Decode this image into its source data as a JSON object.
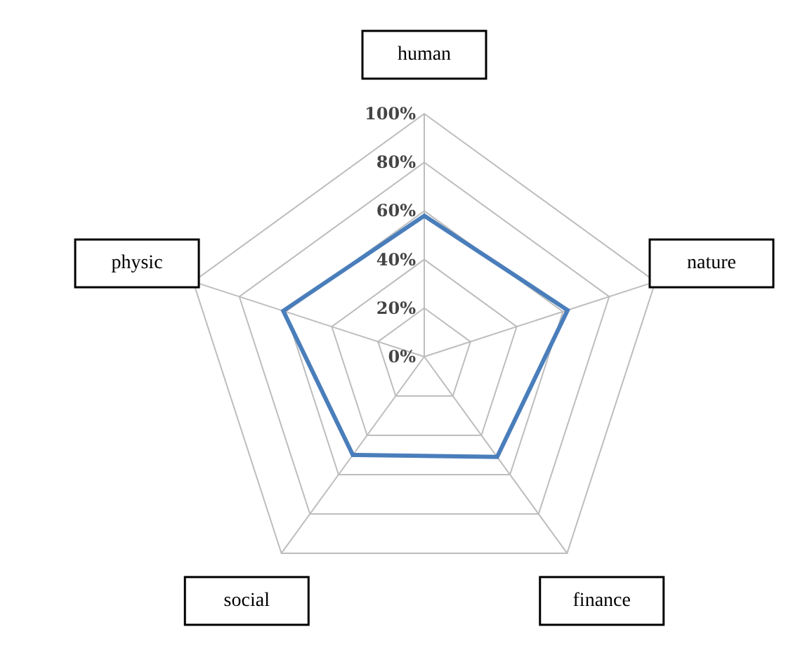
{
  "chart_data": {
    "type": "radar",
    "categories": [
      "human",
      "nature",
      "finance",
      "social",
      "physic"
    ],
    "series": [
      {
        "color": "#4a7ebb",
        "values": [
          58,
          62,
          51,
          50,
          61
        ]
      }
    ],
    "ylim": [
      0,
      100
    ],
    "yticks": [
      {
        "value": 0,
        "label": "0%"
      },
      {
        "value": 20,
        "label": "20%"
      },
      {
        "value": 40,
        "label": "40%"
      },
      {
        "value": 60,
        "label": "60%"
      },
      {
        "value": 80,
        "label": "80%"
      },
      {
        "value": 100,
        "label": "100%"
      }
    ],
    "grid": true,
    "legend": false
  }
}
